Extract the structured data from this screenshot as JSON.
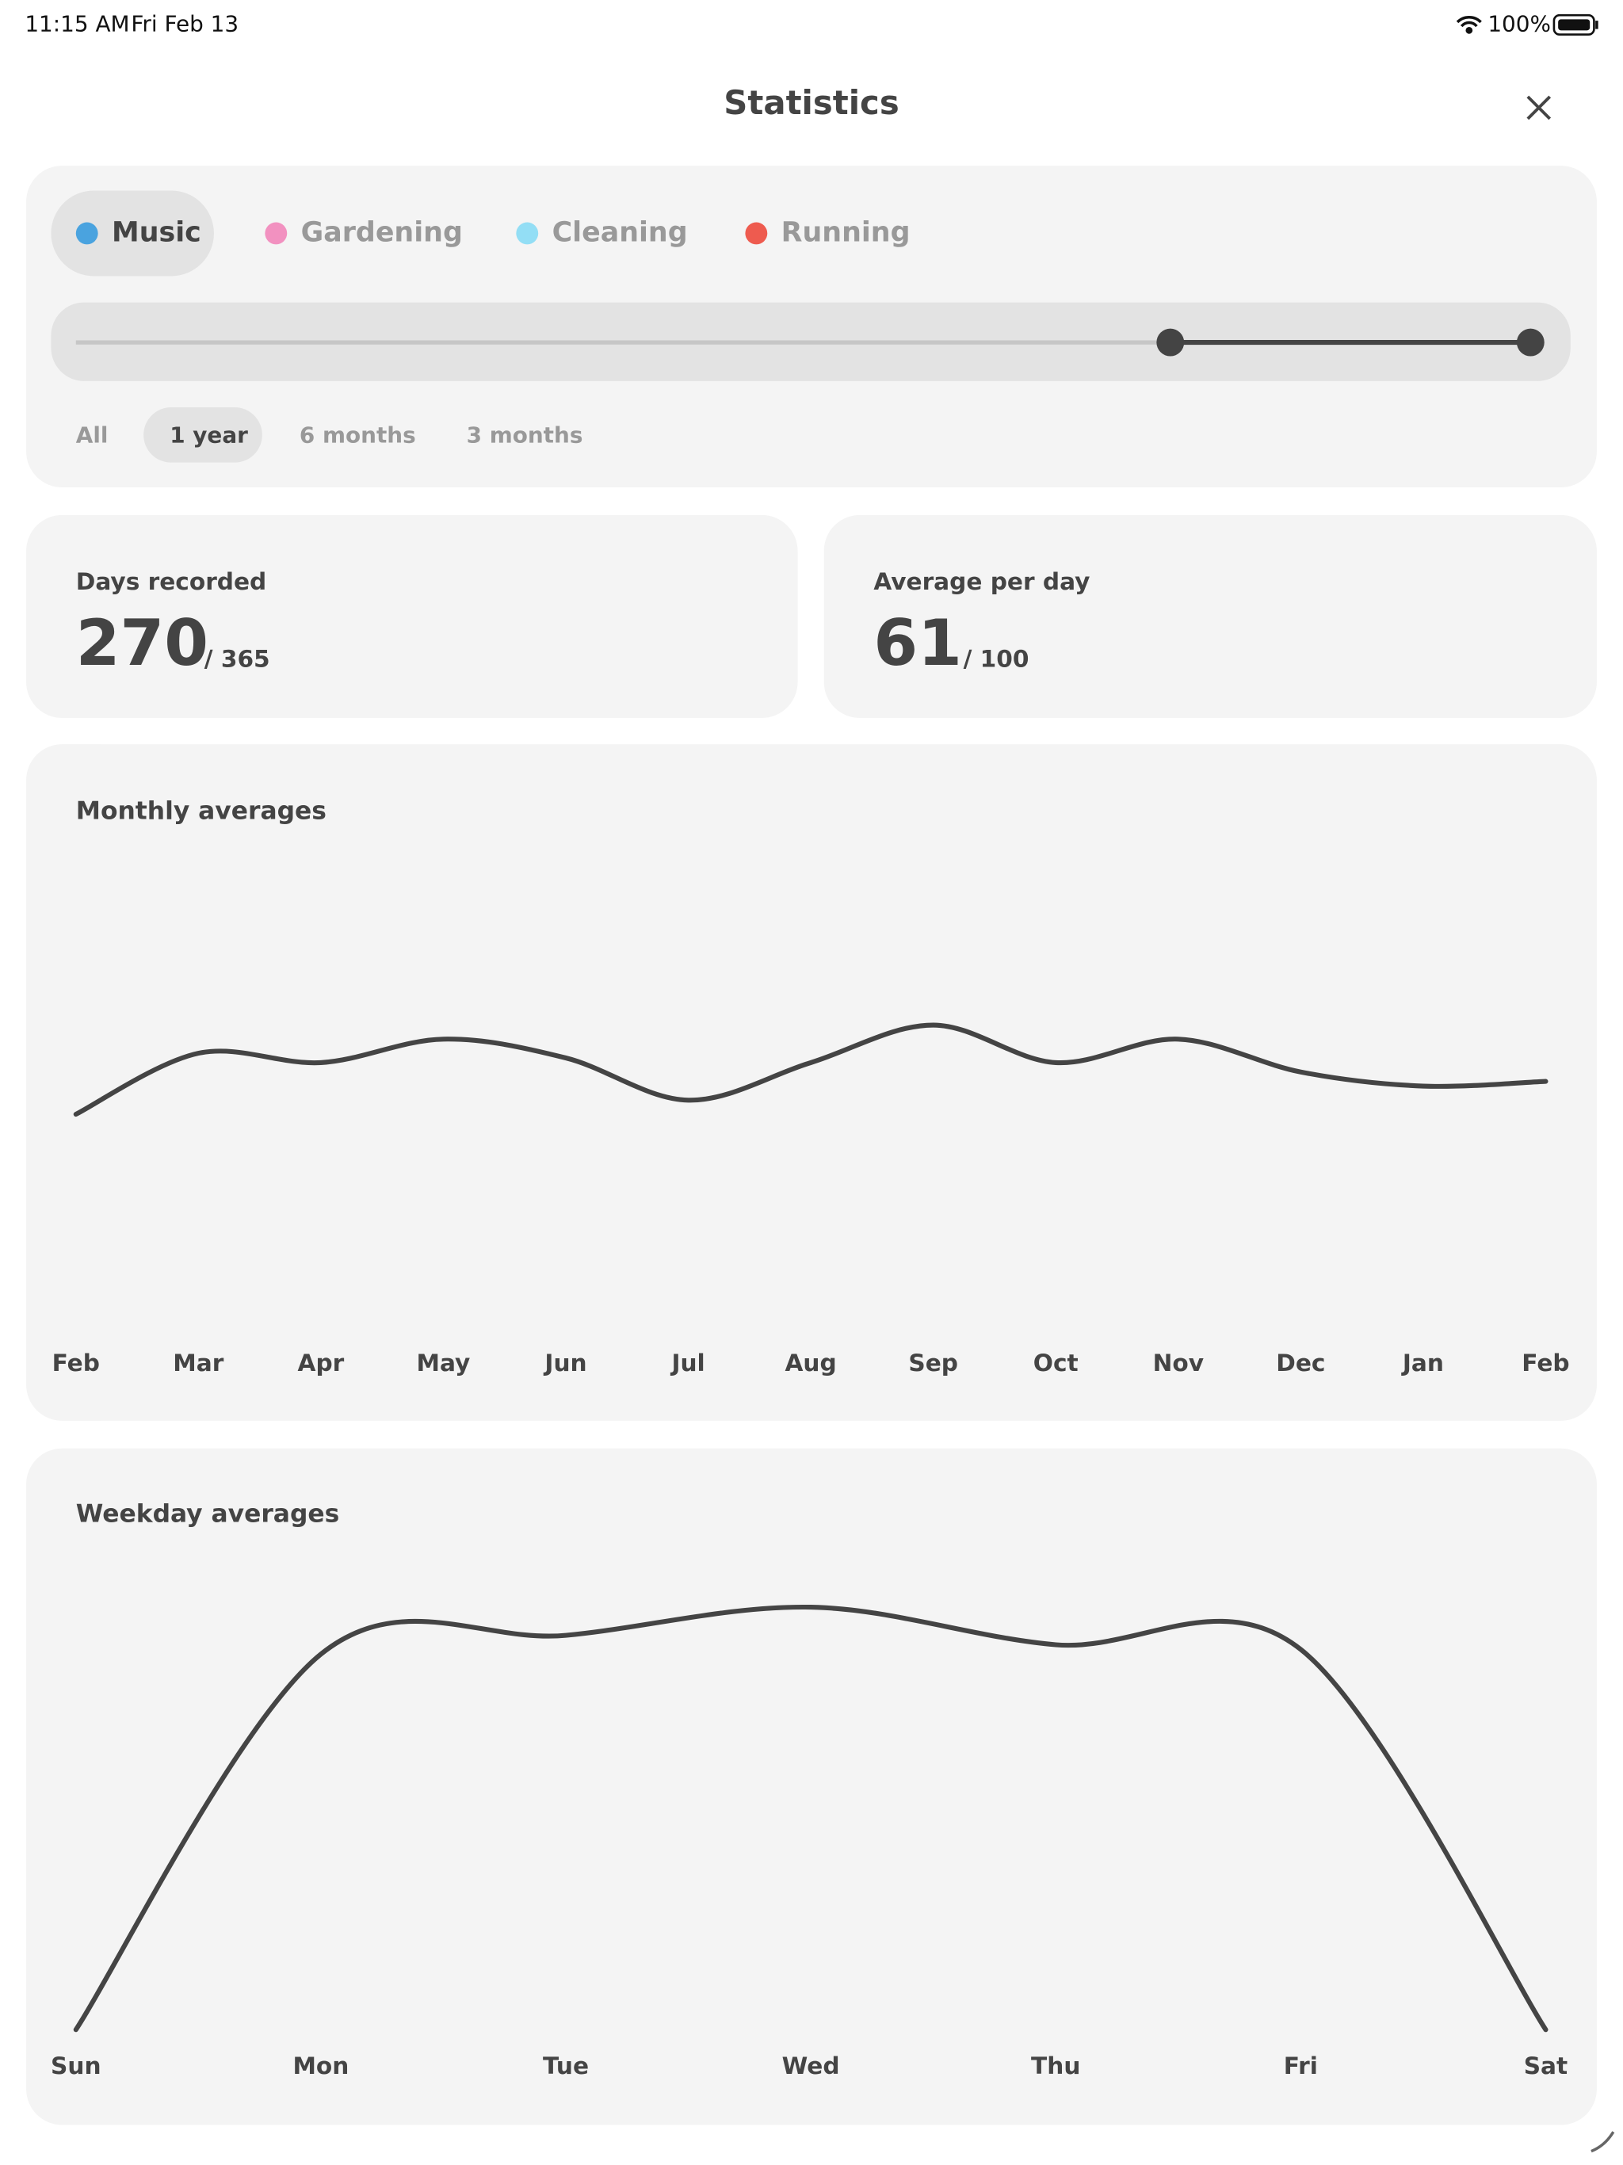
{
  "status_bar": {
    "time": "11:15 AM",
    "date": "Fri Feb 13",
    "battery": "100%"
  },
  "header": {
    "title": "Statistics"
  },
  "tabs": {
    "selected": 0,
    "items": [
      {
        "label": "Music",
        "color": "#4aa3df"
      },
      {
        "label": "Gardening",
        "color": "#f291c0"
      },
      {
        "label": "Cleaning",
        "color": "#93def5"
      },
      {
        "label": "Running",
        "color": "#ee5b4f"
      }
    ]
  },
  "periods": {
    "selected": 1,
    "items": [
      "All",
      "1 year",
      "6 months",
      "3 months"
    ]
  },
  "stats": [
    {
      "label": "Days recorded",
      "value": "270",
      "total": "/ 365"
    },
    {
      "label": "Average per day",
      "value": "61",
      "total": "/ 100"
    }
  ],
  "chart_data": [
    {
      "type": "line",
      "title": "Monthly averages",
      "categories": [
        "Feb",
        "Mar",
        "Apr",
        "May",
        "Jun",
        "Jul",
        "Aug",
        "Sep",
        "Oct",
        "Nov",
        "Dec",
        "Jan",
        "Feb"
      ],
      "values": [
        45,
        58,
        56,
        61,
        57,
        48,
        56,
        64,
        56,
        61,
        54,
        51,
        52
      ],
      "ylim": [
        0,
        100
      ],
      "color": "#444444"
    },
    {
      "type": "line",
      "title": "Weekday averages",
      "categories": [
        "Sun",
        "Mon",
        "Tue",
        "Wed",
        "Thu",
        "Fri",
        "Sat"
      ],
      "values": [
        0,
        80,
        84,
        90,
        82,
        81,
        0
      ],
      "ylim": [
        0,
        100
      ],
      "color": "#444444"
    }
  ]
}
